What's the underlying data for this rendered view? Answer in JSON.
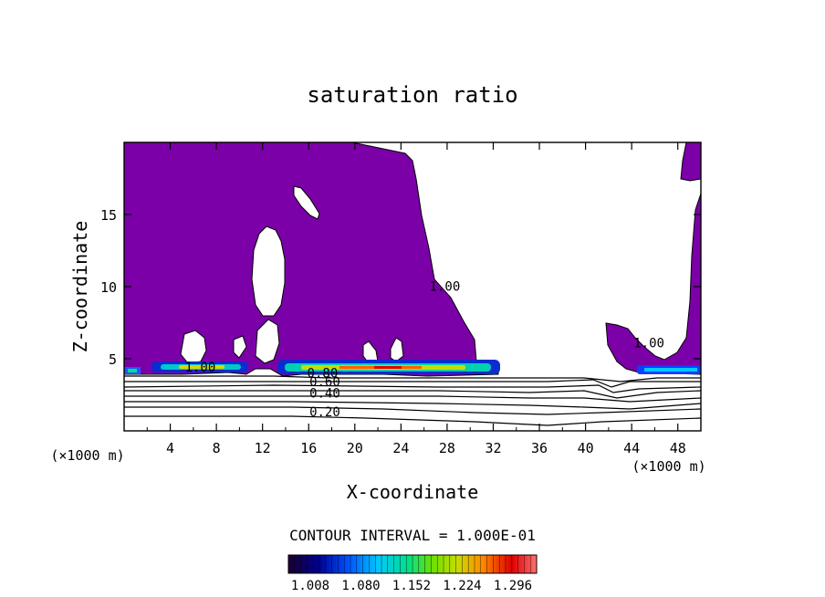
{
  "chart_data": {
    "type": "heatmap",
    "title": "saturation ratio",
    "xlabel": "X-coordinate",
    "ylabel": "Z-coordinate",
    "x_unit_left": "(×1000 m)",
    "x_unit_right": "(×1000 m)",
    "xlim": [
      0,
      50
    ],
    "ylim": [
      0,
      20
    ],
    "x_ticks": [
      4,
      8,
      12,
      16,
      20,
      24,
      28,
      32,
      36,
      40,
      44,
      48
    ],
    "y_ticks": [
      5,
      10,
      15
    ],
    "contour_interval_text": "CONTOUR INTERVAL = 1.000E-01",
    "contour_labels": [
      {
        "text": "1.00",
        "x": 6.6,
        "z": 4.1
      },
      {
        "text": "0.80",
        "x": 17.2,
        "z": 3.7
      },
      {
        "text": "0.60",
        "x": 17.4,
        "z": 3.1
      },
      {
        "text": "0.40",
        "x": 17.4,
        "z": 2.3
      },
      {
        "text": "0.20",
        "x": 17.4,
        "z": 1.0
      },
      {
        "text": "1.00",
        "x": 27.8,
        "z": 9.7
      },
      {
        "text": "1.00",
        "x": 45.5,
        "z": 5.8
      }
    ],
    "colorbar": {
      "tick_labels": [
        "1.008",
        "1.080",
        "1.152",
        "1.224",
        "1.296"
      ],
      "colors": [
        "#1a0033",
        "#000080",
        "#0040ff",
        "#00c0ff",
        "#00e080",
        "#60e000",
        "#c0e000",
        "#ff8000",
        "#e00000",
        "#ff6060"
      ]
    },
    "fill_color": "#7b00a8",
    "grid": false
  }
}
